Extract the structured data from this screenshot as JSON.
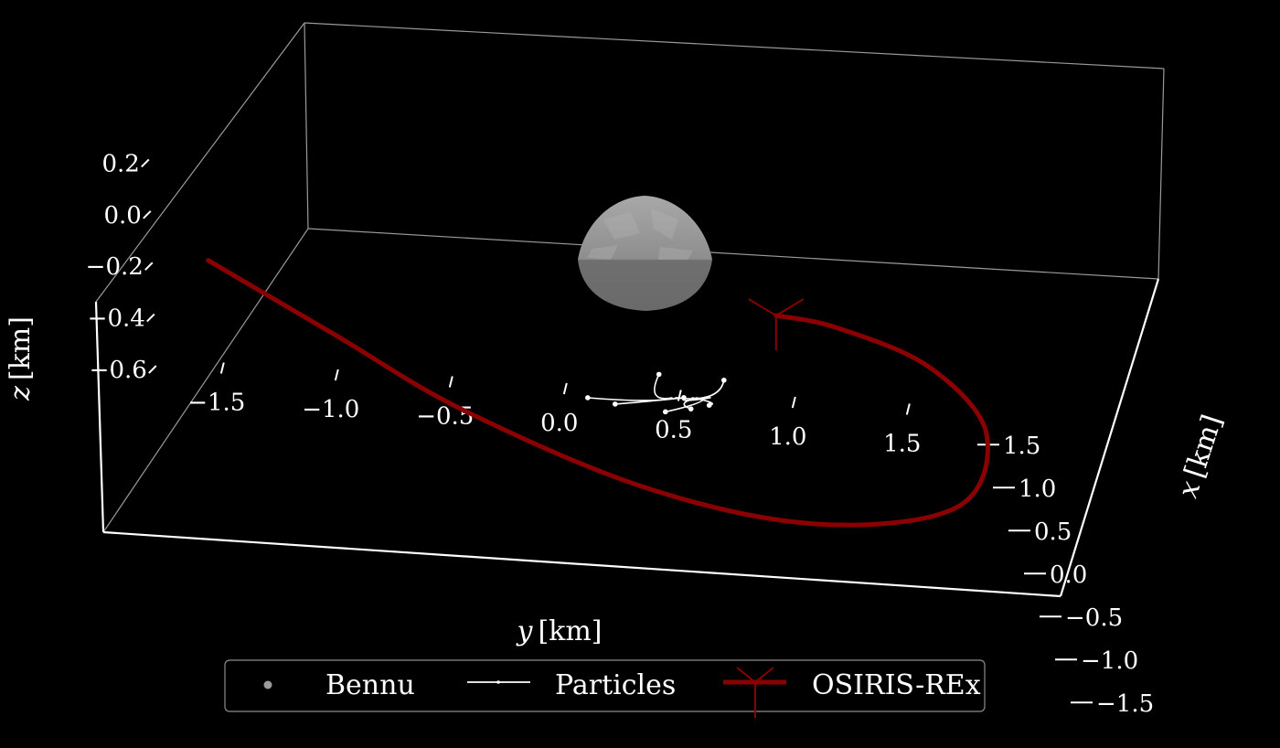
{
  "chart_data": {
    "type": "3d-line",
    "colors": {
      "background": "#000000",
      "box": "#9a9a9a",
      "axis": "#ffffff",
      "bennu": "#9b9b9b",
      "particles": "#ffffff",
      "spacecraft": "#8b0000"
    },
    "axes": {
      "x": {
        "label_var": "x",
        "label_unit": "[km]",
        "range": [
          -1.8,
          1.8
        ],
        "ticks": [
          -1.5,
          -1.0,
          -0.5,
          0.0,
          0.5,
          1.0,
          1.5
        ],
        "tick_labels": [
          "−1.5",
          "−1.0",
          "−0.5",
          "0.0",
          "0.5",
          "1.0",
          "1.5"
        ]
      },
      "y": {
        "label_var": "y",
        "label_unit": "[km]",
        "range": [
          -1.8,
          1.8
        ],
        "ticks": [
          -1.5,
          -1.0,
          -0.5,
          0.0,
          0.5,
          1.0,
          1.5
        ],
        "tick_labels": [
          "−1.5",
          "−1.0",
          "−0.5",
          "0.0",
          "0.5",
          "1.0",
          "1.5"
        ]
      },
      "z": {
        "label_var": "z",
        "label_unit": "[km]",
        "range": [
          -0.6,
          0.3
        ],
        "ticks": [
          -0.6,
          -0.4,
          -0.2,
          0.0,
          0.2
        ],
        "tick_labels": [
          "−0.6",
          "−0.4",
          "−0.2",
          "0.0",
          "0.2"
        ]
      }
    },
    "series": [
      {
        "name": "Bennu",
        "kind": "body",
        "center": [
          0.0,
          0.35,
          0.2
        ],
        "radius": 0.25
      },
      {
        "name": "Particles",
        "kind": "trajectories",
        "endpoints": [
          [
            0.42,
            0.25,
            -0.05
          ],
          [
            0.55,
            -0.05,
            -0.2
          ],
          [
            0.8,
            0.1,
            -0.3
          ],
          [
            0.7,
            0.5,
            -0.25
          ],
          [
            0.95,
            0.45,
            -0.35
          ],
          [
            1.05,
            0.35,
            -0.4
          ],
          [
            0.62,
            0.38,
            -0.2
          ],
          [
            0.55,
            0.55,
            -0.1
          ]
        ]
      },
      {
        "name": "OSIRIS-REx",
        "kind": "orbit",
        "path": [
          [
            1.3,
            -1.6,
            0.0
          ],
          [
            0.5,
            -1.15,
            0.0
          ],
          [
            -0.3,
            -0.7,
            0.0
          ],
          [
            -1.1,
            0.0,
            0.0
          ],
          [
            -1.4,
            0.7,
            0.0
          ],
          [
            -1.1,
            1.35,
            0.0
          ],
          [
            -0.2,
            1.6,
            0.0
          ],
          [
            0.55,
            1.45,
            0.0
          ],
          [
            0.95,
            1.1,
            0.0
          ],
          [
            1.05,
            0.85,
            0.0
          ]
        ],
        "marker_position": [
          1.05,
          0.85,
          0.0
        ]
      }
    ],
    "legend": {
      "placement": "bottom-center",
      "entries": [
        "Bennu",
        "Particles",
        "OSIRIS-REx"
      ]
    },
    "grid": false
  }
}
